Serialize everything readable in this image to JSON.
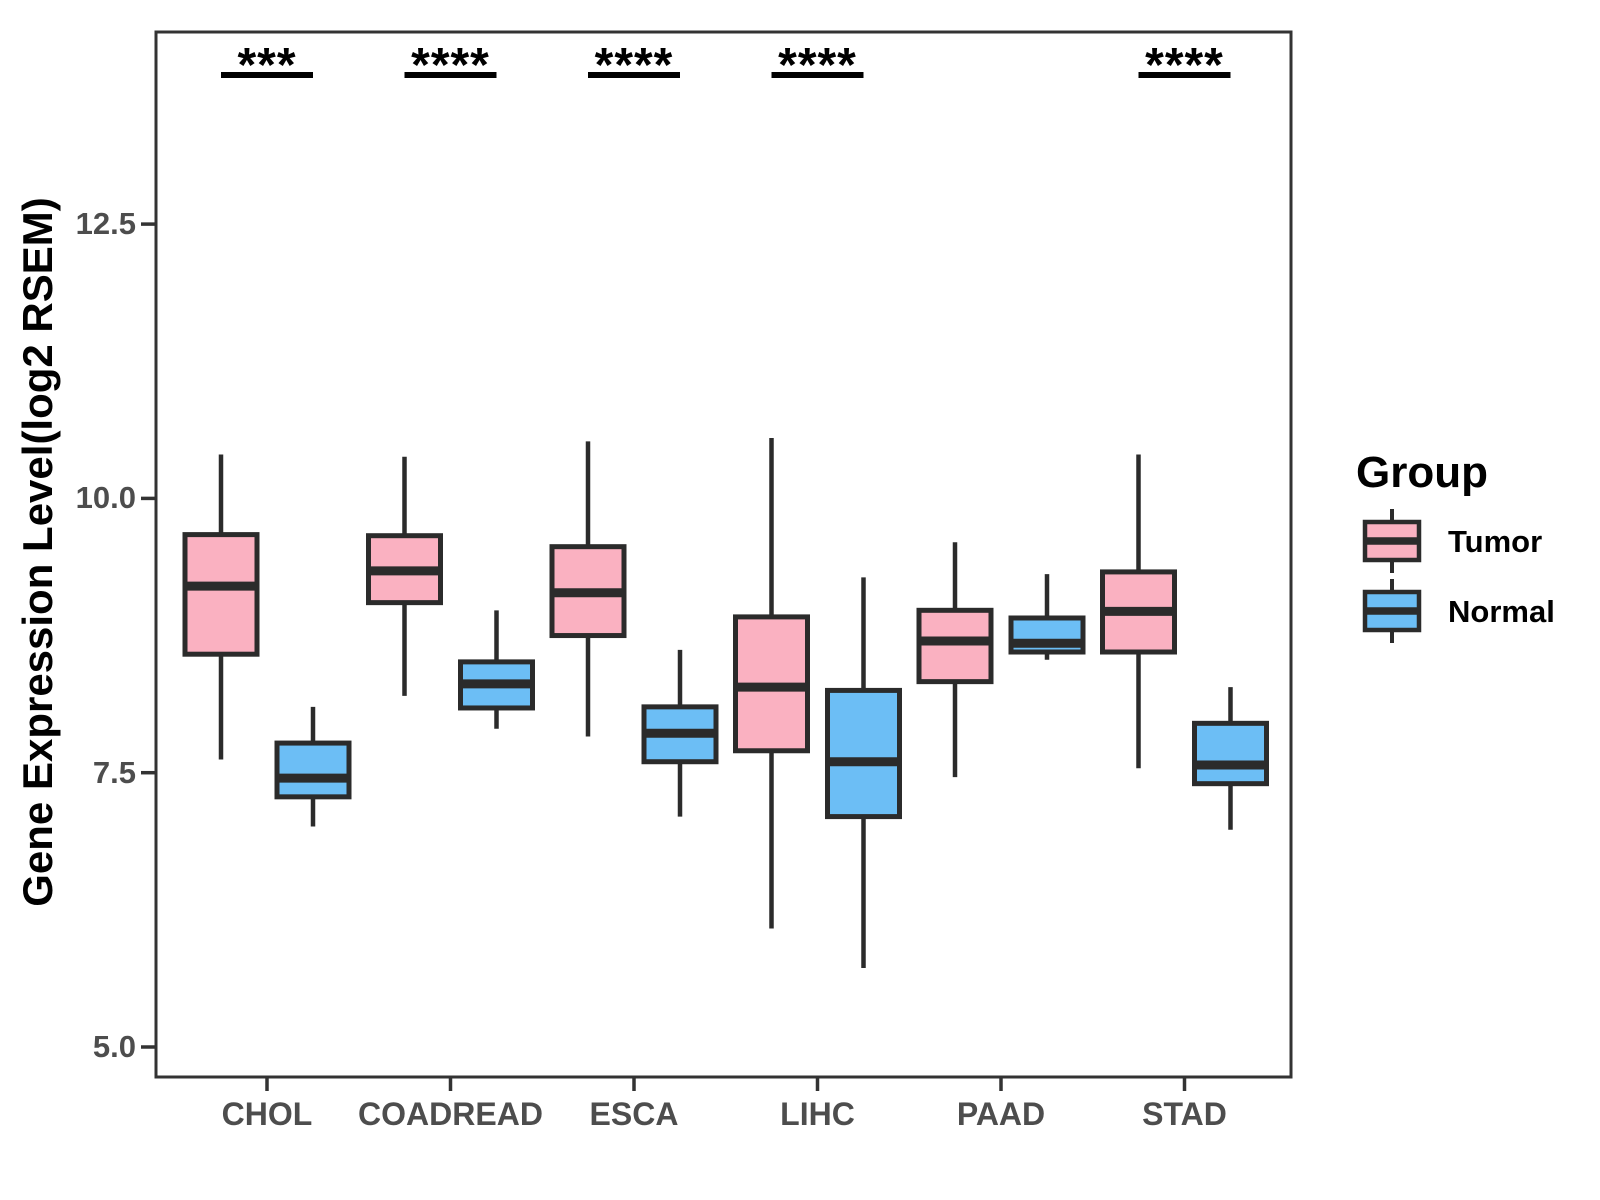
{
  "figure": {
    "y_axis_title": "Gene Expression Level(log2 RSEM)",
    "legend": {
      "title": "Group",
      "items": [
        {
          "label": "Tumor",
          "color": "#FAB1C1"
        },
        {
          "label": "Normal",
          "color": "#6CBEF5"
        }
      ]
    }
  },
  "colors": {
    "tumor_fill": "#FAB1C1",
    "normal_fill": "#6CBEF5",
    "box_stroke": "#2B2B2B",
    "axis_stroke": "#333333",
    "tick_label": "#4D4D4D",
    "annotation": "#000000",
    "background": "#FFFFFF"
  },
  "chart_data": {
    "type": "boxplot",
    "title": "",
    "xlabel": "",
    "ylabel": "Gene Expression Level(log2 RSEM)",
    "grid": false,
    "legend_position": "right",
    "categories": [
      "CHOL",
      "COADREAD",
      "ESCA",
      "LIHC",
      "PAAD",
      "STAD"
    ],
    "y_ticks": [
      {
        "value": 5.0,
        "label": "5.0"
      },
      {
        "value": 7.5,
        "label": "7.5"
      },
      {
        "value": 10.0,
        "label": "10.0"
      },
      {
        "value": 12.5,
        "label": "12.5"
      }
    ],
    "ylim": [
      4.7,
      14.25
    ],
    "significance": [
      "***",
      "****",
      "****",
      "****",
      "",
      "****"
    ],
    "series": [
      {
        "name": "Tumor",
        "color": "#FAB1C1",
        "boxes": [
          {
            "category": "CHOL",
            "whisker_low": 7.62,
            "q1": 8.58,
            "median": 9.2,
            "q3": 9.67,
            "whisker_high": 10.4
          },
          {
            "category": "COADREAD",
            "whisker_low": 8.2,
            "q1": 9.05,
            "median": 9.34,
            "q3": 9.66,
            "whisker_high": 10.38
          },
          {
            "category": "ESCA",
            "whisker_low": 7.83,
            "q1": 8.75,
            "median": 9.14,
            "q3": 9.56,
            "whisker_high": 10.52
          },
          {
            "category": "LIHC",
            "whisker_low": 6.08,
            "q1": 7.7,
            "median": 8.28,
            "q3": 8.92,
            "whisker_high": 10.55
          },
          {
            "category": "PAAD",
            "whisker_low": 7.46,
            "q1": 8.33,
            "median": 8.7,
            "q3": 8.98,
            "whisker_high": 9.6
          },
          {
            "category": "STAD",
            "whisker_low": 7.54,
            "q1": 8.6,
            "median": 8.97,
            "q3": 9.33,
            "whisker_high": 10.4
          }
        ]
      },
      {
        "name": "Normal",
        "color": "#6CBEF5",
        "boxes": [
          {
            "category": "CHOL",
            "whisker_low": 7.01,
            "q1": 7.28,
            "median": 7.45,
            "q3": 7.77,
            "whisker_high": 8.1
          },
          {
            "category": "COADREAD",
            "whisker_low": 7.9,
            "q1": 8.09,
            "median": 8.31,
            "q3": 8.51,
            "whisker_high": 8.98
          },
          {
            "category": "ESCA",
            "whisker_low": 7.1,
            "q1": 7.6,
            "median": 7.86,
            "q3": 8.1,
            "whisker_high": 8.62
          },
          {
            "category": "LIHC",
            "whisker_low": 5.72,
            "q1": 7.1,
            "median": 7.6,
            "q3": 8.25,
            "whisker_high": 9.28
          },
          {
            "category": "PAAD",
            "whisker_low": 8.53,
            "q1": 8.6,
            "median": 8.68,
            "q3": 8.91,
            "whisker_high": 9.31
          },
          {
            "category": "STAD",
            "whisker_low": 6.98,
            "q1": 7.4,
            "median": 7.57,
            "q3": 7.95,
            "whisker_high": 8.28
          }
        ]
      }
    ]
  }
}
